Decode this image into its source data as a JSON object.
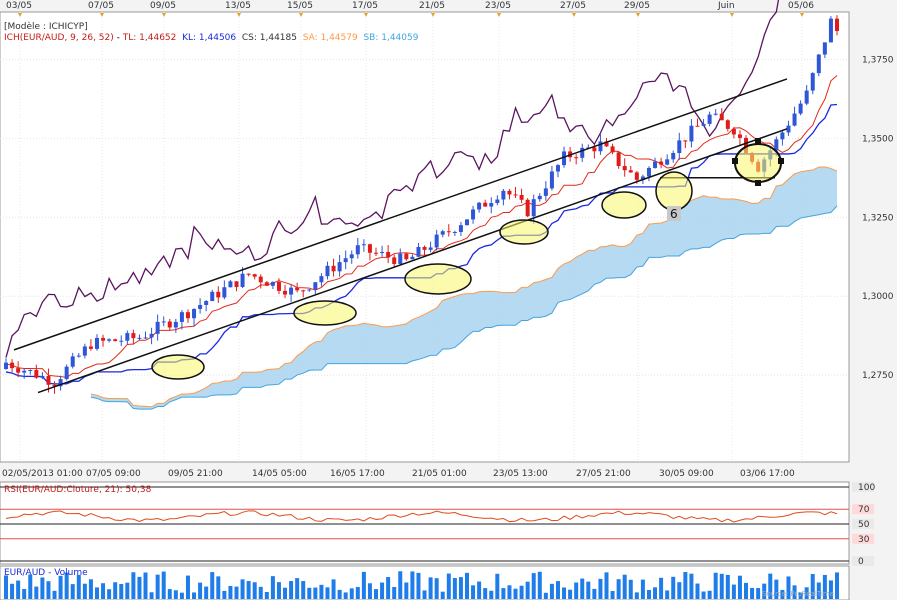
{
  "chart_data": {
    "type": "candlestick",
    "model_label": "[Modèle : ICHICYP]",
    "indicator": {
      "name": "ICH(EUR/AUD, 9, 26, 52)",
      "tl": "TL: 1,44652",
      "kl": "KL: 1,44506",
      "cs": "CS: 1,44185",
      "sa": "SA: 1,44579",
      "sb": "SB: 1,44059"
    },
    "top_date_ticks": [
      "03/05",
      "07/05",
      "09/05",
      "13/05",
      "15/05",
      "17/05",
      "21/05",
      "23/05",
      "27/05",
      "29/05",
      "Juin",
      "05/06"
    ],
    "bottom_date_ticks": [
      "02/05/2013 01:00",
      "07/05 09:00",
      "09/05 21:00",
      "14/05 05:00",
      "16/05 17:00",
      "21/05 01:00",
      "23/05 13:00",
      "27/05 21:00",
      "30/05 09:00",
      "03/06 17:00"
    ],
    "y_axis": {
      "ticks": [
        "1,3750",
        "1,3500",
        "1,3250",
        "1,3000",
        "1,2750"
      ],
      "values": [
        1.375,
        1.35,
        1.325,
        1.3,
        1.275
      ],
      "ylim": [
        1.2475,
        1.39
      ]
    },
    "annotation": "6",
    "rsi": {
      "label": "RSI(EUR/AUD:Cloture, 21): 50,38",
      "ticks": [
        "100",
        "70",
        "50",
        "30",
        "0"
      ]
    },
    "volume": {
      "label": "EUR/AUD - Volume"
    },
    "colors": {
      "up": "#2f56d6",
      "down": "#e01b1b",
      "tenkan": "#e32a1a",
      "kijun": "#1a2ae0",
      "chikou": "#5a1560",
      "kumo": "#a8d4ef",
      "ssa": "#ff9a4a",
      "ssb": "#42a5e0",
      "highlight": "#f8f56a"
    },
    "footer": "Source: ProRealTime"
  }
}
